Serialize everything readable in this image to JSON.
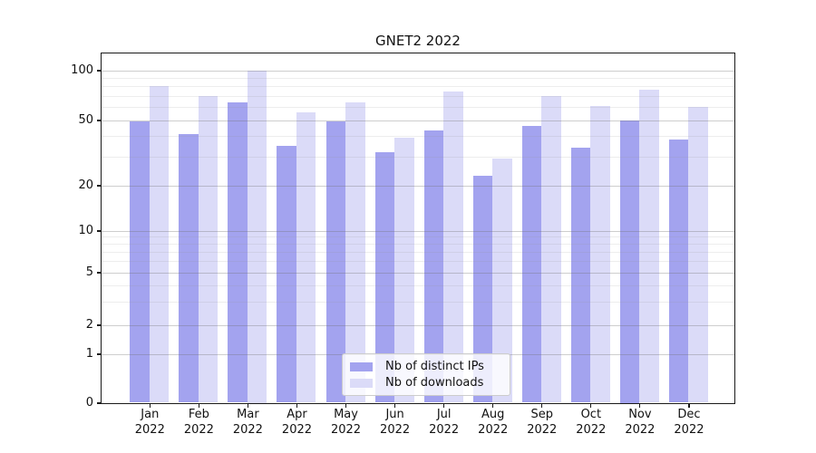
{
  "title": "GNET2 2022",
  "legend": {
    "items": [
      {
        "label": "Nb of distinct IPs",
        "color": "#a3a3ef"
      },
      {
        "label": "Nb of downloads",
        "color": "#dbdbf8"
      }
    ]
  },
  "y_axis": {
    "tick_labels": [
      "0",
      "1",
      "2",
      "5",
      "10",
      "20",
      "50",
      "100"
    ]
  },
  "x_axis": {
    "year_label": "2022"
  },
  "chart_data": {
    "type": "bar",
    "title": "GNET2 2022",
    "categories": [
      "Jan",
      "Feb",
      "Mar",
      "Apr",
      "May",
      "Jun",
      "Jul",
      "Aug",
      "Sep",
      "Oct",
      "Nov",
      "Dec"
    ],
    "x_tick_second_line": "2022",
    "series": [
      {
        "name": "Nb of distinct IPs",
        "color": "#a3a3ef",
        "values": [
          49,
          41,
          64,
          35,
          49,
          32,
          43,
          23,
          46,
          34,
          50,
          38
        ]
      },
      {
        "name": "Nb of downloads",
        "color": "#dbdbf8",
        "values": [
          80,
          70,
          100,
          56,
          64,
          39,
          74,
          29,
          70,
          61,
          76,
          60
        ]
      }
    ],
    "xlabel": "",
    "ylabel": "",
    "y_scale": "symlog",
    "y_ticks": [
      0,
      1,
      2,
      5,
      10,
      20,
      50,
      100
    ],
    "y_minor_ticks": [
      3,
      4,
      6,
      7,
      8,
      9,
      30,
      40,
      60,
      70,
      80,
      90
    ],
    "ylim": [
      0,
      110
    ],
    "grid": true,
    "legend_position": "lower center"
  },
  "colors": {
    "bar_distinct_ips": "#a3a3ef",
    "bar_downloads": "#dbdbf8",
    "spine": "#1a1a1a",
    "grid_major": "#d9d9d9",
    "grid_minor": "#ececec",
    "legend_border": "#cccccc"
  }
}
